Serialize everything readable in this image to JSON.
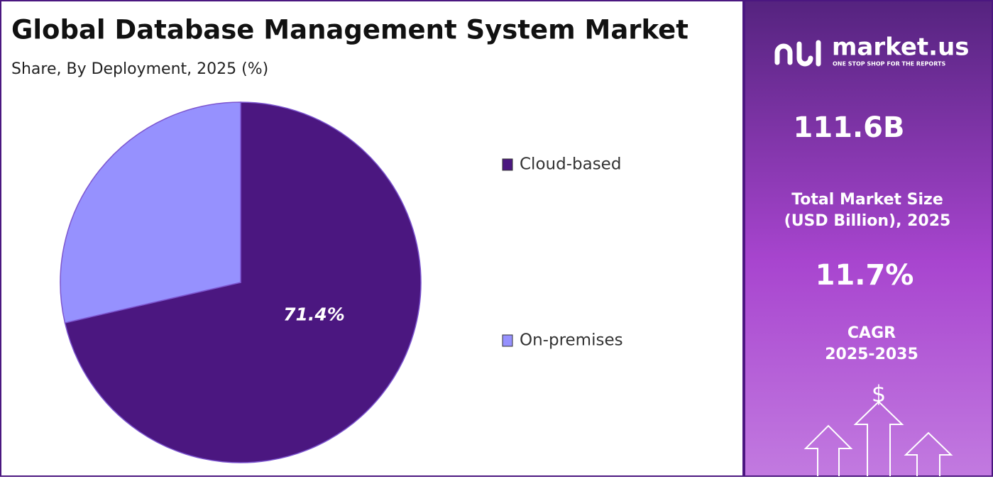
{
  "chart_data": {
    "type": "pie",
    "title": "Global Database Management System Market",
    "subtitle": "Share, By Deployment, 2025 (%)",
    "categories": [
      "Cloud-based",
      "On-premises"
    ],
    "values": [
      71.4,
      28.6
    ],
    "value_labels": [
      "71.4%",
      null
    ],
    "colors": [
      "#4b1780",
      "#9691fe"
    ],
    "legend": "right"
  },
  "panel": {
    "brand": "market.us",
    "tagline": "ONE STOP SHOP FOR THE REPORTS",
    "market_size": "111.6B",
    "market_size_label": [
      "Total Market Size",
      "(USD Billion), 2025"
    ],
    "cagr": "11.7%",
    "cagr_label": [
      "CAGR",
      "2025-2035"
    ],
    "icon": "$"
  }
}
